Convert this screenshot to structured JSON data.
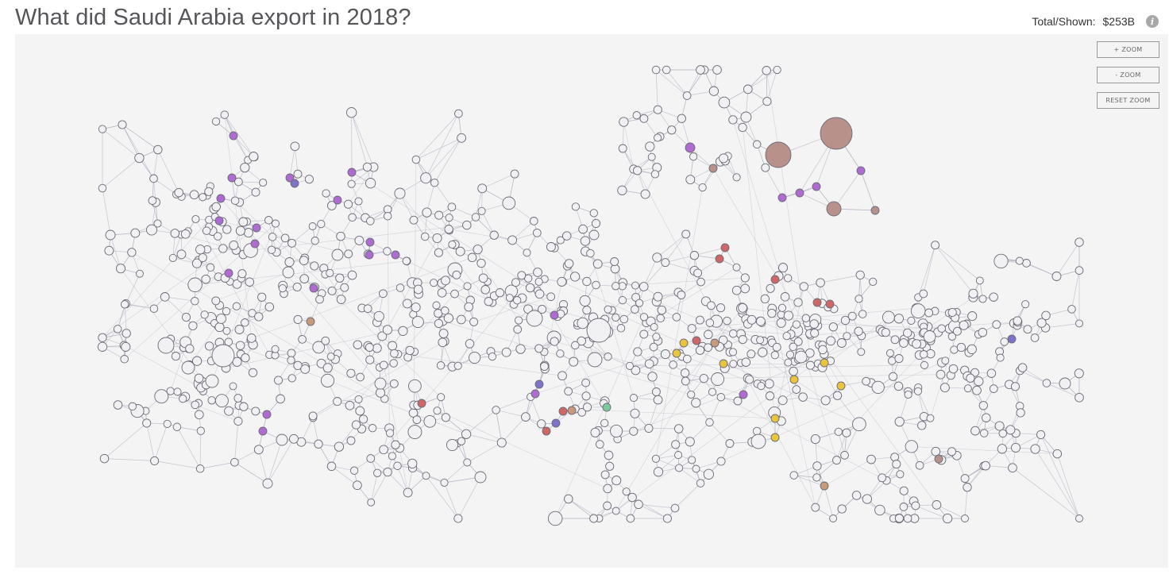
{
  "header": {
    "title": "What did Saudi Arabia export in 2018?",
    "total_label": "Total/Shown:",
    "total_value": "$253B",
    "info_icon": "info-icon"
  },
  "zoom_controls": {
    "zoom_in_label": "+ ZOOM",
    "zoom_out_label": "- ZOOM",
    "reset_label": "RESET ZOOM"
  },
  "network": {
    "default_node_color": "#f1f1f4",
    "node_stroke_color": "#6b6b77",
    "edge_color": "#b4b4c4",
    "highlight_colors": {
      "purple": "#b06bd2",
      "violet": "#7f73c9",
      "brown": "#b8928a",
      "tan": "#c79a7a",
      "red": "#d06764",
      "yellow": "#eac43a",
      "green": "#7acb97"
    }
  }
}
